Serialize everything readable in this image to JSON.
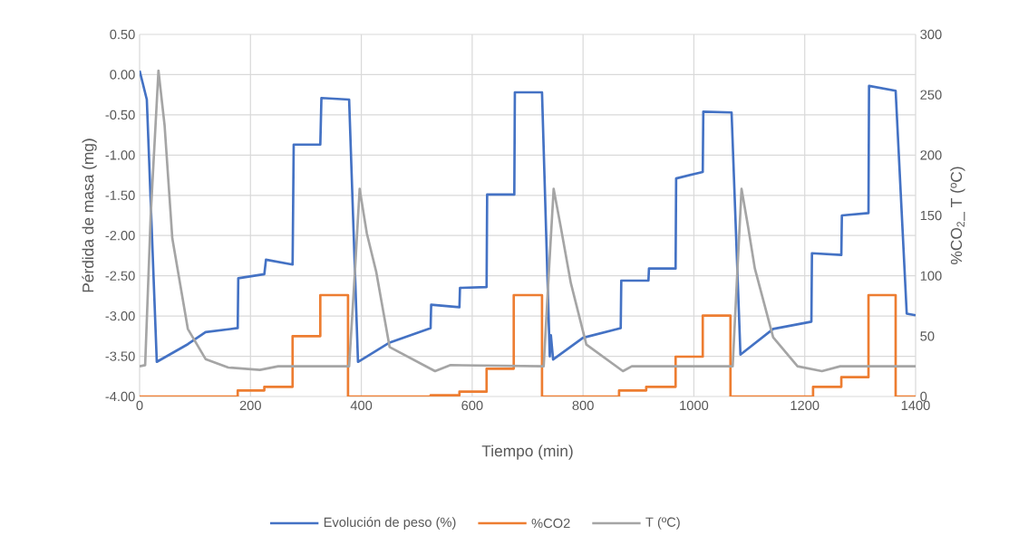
{
  "chart_data": {
    "type": "line",
    "xlabel": "Tiempo (min)",
    "ylabel": "Pérdida de masa (mg)",
    "y2label": "%CO$_{2}$_ T (ºC)",
    "xlim": [
      0,
      1400
    ],
    "xticks": [
      0,
      200,
      400,
      600,
      800,
      1000,
      1200,
      1400
    ],
    "ylim": [
      -4,
      0.5
    ],
    "yticks": [
      {
        "value": -4,
        "label": "-4.00"
      },
      {
        "value": -3.5,
        "label": "-3.50"
      },
      {
        "value": -3,
        "label": "-3.00"
      },
      {
        "value": -2.5,
        "label": "-2.50"
      },
      {
        "value": -2,
        "label": "-2.00"
      },
      {
        "value": -1.5,
        "label": "-1.50"
      },
      {
        "value": -1,
        "label": "-1.00"
      },
      {
        "value": -0.5,
        "label": "-0.50"
      },
      {
        "value": 0,
        "label": "0.00"
      },
      {
        "value": 0.5,
        "label": "0.50"
      }
    ],
    "y2lim": [
      0,
      300
    ],
    "y2ticks": [
      0,
      50,
      100,
      150,
      200,
      250,
      300
    ],
    "grid": true,
    "legend": "bottom",
    "series": [
      {
        "name": "Evolución de peso (%)",
        "color": "#4472c4",
        "x": [
          0,
          13,
          31,
          87,
          119,
          177,
          178,
          225,
          228,
          276,
          278,
          326,
          328,
          378,
          394,
          451,
          525,
          526,
          577,
          578,
          626,
          627,
          676,
          677,
          726,
          740,
          742,
          746,
          800,
          868,
          869,
          918,
          919,
          967,
          968,
          1016,
          1017,
          1068,
          1084,
          1143,
          1212,
          1213,
          1266,
          1267,
          1315,
          1316,
          1364,
          1384,
          1400
        ],
        "values": [
          0.05,
          -0.31,
          -3.57,
          -3.35,
          -3.2,
          -3.15,
          -2.53,
          -2.48,
          -2.3,
          -2.36,
          -0.87,
          -0.87,
          -0.29,
          -0.31,
          -3.57,
          -3.33,
          -3.15,
          -2.86,
          -2.89,
          -2.65,
          -2.64,
          -1.49,
          -1.49,
          -0.22,
          -0.22,
          -3.5,
          -3.24,
          -3.54,
          -3.27,
          -3.15,
          -2.56,
          -2.56,
          -2.41,
          -2.41,
          -1.29,
          -1.21,
          -0.46,
          -0.47,
          -3.48,
          -3.16,
          -3.07,
          -2.22,
          -2.24,
          -1.75,
          -1.72,
          -0.14,
          -0.2,
          -2.97,
          -2.99
        ]
      },
      {
        "name": "%CO2",
        "type": "step",
        "axis": "y2",
        "color": "#ed7d31",
        "x": [
          0,
          177,
          225,
          276,
          326,
          376,
          525,
          577,
          626,
          675,
          726,
          865,
          914,
          967,
          1016,
          1066,
          1215,
          1266,
          1315,
          1364,
          1400
        ],
        "values": [
          0,
          5,
          8,
          50,
          84,
          0,
          1,
          4,
          23,
          84,
          0,
          5,
          8,
          33,
          67,
          0,
          8,
          16,
          84,
          0,
          0
        ]
      },
      {
        "name": "T (ºC)",
        "axis": "y2",
        "color": "#a5a5a5",
        "x": [
          0,
          10,
          20,
          34,
          45,
          59,
          87,
          119,
          160,
          217,
          250,
          378,
          388,
          397,
          410,
          427,
          451,
          533,
          561,
          729,
          738,
          747,
          760,
          778,
          806,
          872,
          888,
          1070,
          1078,
          1086,
          1098,
          1110,
          1143,
          1187,
          1231,
          1264,
          1400
        ],
        "values": [
          25,
          26,
          150,
          270,
          225,
          131,
          56,
          31,
          24,
          22,
          25,
          25,
          100,
          172,
          135,
          103,
          41,
          21,
          26,
          25,
          100,
          172,
          140,
          94,
          43,
          21,
          25,
          25,
          100,
          172,
          140,
          106,
          49,
          25,
          21,
          25,
          25
        ]
      }
    ]
  }
}
